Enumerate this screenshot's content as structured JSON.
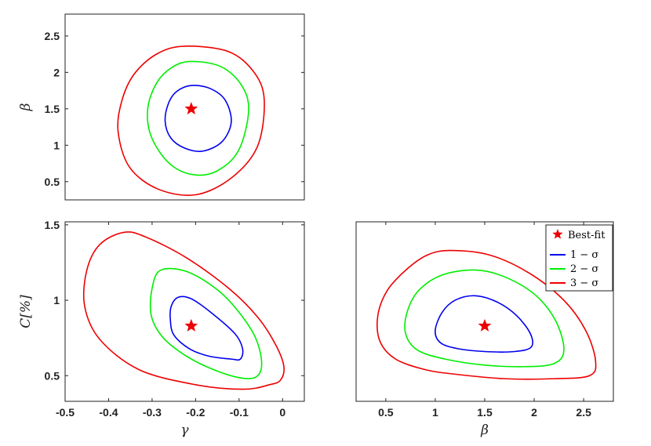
{
  "colors": {
    "one_sigma": "#0000ee",
    "two_sigma": "#00ee00",
    "three_sigma": "#ee0000",
    "best_fit": "#ee0000"
  },
  "legend": {
    "placement": "top-right of bottom-right panel",
    "best_fit": "Best-fit",
    "one_sigma": "1 − σ",
    "two_sigma": "2 − σ",
    "three_sigma": "3 − σ"
  },
  "chart_data": [
    {
      "id": "panel-gamma-beta",
      "type": "scatter",
      "xlim": [
        -0.5,
        0.05
      ],
      "ylim": [
        0.25,
        2.8
      ],
      "xlabel": "",
      "ylabel": "β",
      "xticks": [],
      "xtick_labels": [],
      "yticks": [
        0.5,
        1,
        1.5,
        2,
        2.5
      ],
      "ytick_labels": [
        "0.5",
        "1",
        "1.5",
        "2",
        "2.5"
      ],
      "best_fit": {
        "x": -0.21,
        "y": 1.5
      },
      "contours": [
        {
          "name": "1 − σ",
          "color": "#0000ee",
          "points": [
            [
              -0.21,
              1.82
            ],
            [
              -0.167,
              1.78
            ],
            [
              -0.132,
              1.62
            ],
            [
              -0.118,
              1.32
            ],
            [
              -0.139,
              1.05
            ],
            [
              -0.183,
              0.92
            ],
            [
              -0.225,
              0.96
            ],
            [
              -0.257,
              1.1
            ],
            [
              -0.27,
              1.33
            ],
            [
              -0.262,
              1.58
            ],
            [
              -0.243,
              1.74
            ]
          ]
        },
        {
          "name": "2 − σ",
          "color": "#00ee00",
          "points": [
            [
              -0.21,
              2.15
            ],
            [
              -0.142,
              2.08
            ],
            [
              -0.095,
              1.83
            ],
            [
              -0.078,
              1.48
            ],
            [
              -0.101,
              0.93
            ],
            [
              -0.153,
              0.64
            ],
            [
              -0.21,
              0.6
            ],
            [
              -0.262,
              0.76
            ],
            [
              -0.302,
              1.12
            ],
            [
              -0.31,
              1.5
            ],
            [
              -0.29,
              1.85
            ],
            [
              -0.254,
              2.07
            ]
          ]
        },
        {
          "name": "3 − σ",
          "color": "#ee0000",
          "points": [
            [
              -0.225,
              2.36
            ],
            [
              -0.122,
              2.28
            ],
            [
              -0.063,
              1.98
            ],
            [
              -0.042,
              1.6
            ],
            [
              -0.058,
              0.98
            ],
            [
              -0.118,
              0.55
            ],
            [
              -0.2,
              0.32
            ],
            [
              -0.287,
              0.4
            ],
            [
              -0.352,
              0.7
            ],
            [
              -0.378,
              1.18
            ],
            [
              -0.37,
              1.6
            ],
            [
              -0.342,
              1.97
            ],
            [
              -0.29,
              2.25
            ]
          ]
        }
      ]
    },
    {
      "id": "panel-gamma-C",
      "type": "scatter",
      "xlim": [
        -0.5,
        0.05
      ],
      "ylim": [
        0.33,
        1.52
      ],
      "xlabel": "γ",
      "ylabel": "C[%]",
      "xticks": [
        -0.5,
        -0.4,
        -0.3,
        -0.2,
        -0.1,
        0
      ],
      "xtick_labels": [
        "-0.5",
        "-0.4",
        "-0.3",
        "-0.2",
        "-0.1",
        "0"
      ],
      "yticks": [
        0.5,
        1,
        1.5
      ],
      "ytick_labels": [
        "0.5",
        "1",
        "1.5"
      ],
      "best_fit": {
        "x": -0.21,
        "y": 0.83
      },
      "contours": [
        {
          "name": "1 − σ",
          "color": "#0000ee",
          "points": [
            [
              -0.24,
              1.02
            ],
            [
              -0.21,
              1.01
            ],
            [
              -0.165,
              0.92
            ],
            [
              -0.11,
              0.78
            ],
            [
              -0.092,
              0.68
            ],
            [
              -0.097,
              0.61
            ],
            [
              -0.118,
              0.61
            ],
            [
              -0.17,
              0.63
            ],
            [
              -0.215,
              0.68
            ],
            [
              -0.25,
              0.77
            ],
            [
              -0.258,
              0.87
            ],
            [
              -0.256,
              0.96
            ]
          ]
        },
        {
          "name": "2 − σ",
          "color": "#00ee00",
          "points": [
            [
              -0.28,
              1.2
            ],
            [
              -0.22,
              1.19
            ],
            [
              -0.15,
              1.07
            ],
            [
              -0.1,
              0.92
            ],
            [
              -0.062,
              0.75
            ],
            [
              -0.048,
              0.58
            ],
            [
              -0.062,
              0.49
            ],
            [
              -0.105,
              0.49
            ],
            [
              -0.175,
              0.56
            ],
            [
              -0.232,
              0.65
            ],
            [
              -0.277,
              0.76
            ],
            [
              -0.302,
              0.9
            ],
            [
              -0.3,
              1.08
            ]
          ]
        },
        {
          "name": "3 − σ",
          "color": "#ee0000",
          "points": [
            [
              -0.365,
              1.45
            ],
            [
              -0.315,
              1.42
            ],
            [
              -0.22,
              1.28
            ],
            [
              -0.12,
              1.07
            ],
            [
              -0.055,
              0.88
            ],
            [
              -0.015,
              0.7
            ],
            [
              0.003,
              0.56
            ],
            [
              -0.005,
              0.47
            ],
            [
              -0.03,
              0.44
            ],
            [
              -0.09,
              0.41
            ],
            [
              -0.2,
              0.44
            ],
            [
              -0.33,
              0.54
            ],
            [
              -0.42,
              0.74
            ],
            [
              -0.455,
              0.96
            ],
            [
              -0.45,
              1.2
            ],
            [
              -0.42,
              1.37
            ]
          ]
        }
      ]
    },
    {
      "id": "panel-beta-C",
      "type": "scatter",
      "xlim": [
        0.2,
        2.8
      ],
      "ylim": [
        0.33,
        1.52
      ],
      "xlabel": "β",
      "ylabel": "",
      "xticks": [
        0.5,
        1,
        1.5,
        2,
        2.5
      ],
      "xtick_labels": [
        "0.5",
        "1",
        "1.5",
        "2",
        "2.5"
      ],
      "yticks": [],
      "ytick_labels": [],
      "best_fit": {
        "x": 1.5,
        "y": 0.83
      },
      "legend": true,
      "contours": [
        {
          "name": "1 − σ",
          "color": "#0000ee",
          "points": [
            [
              1.4,
              1.03
            ],
            [
              1.62,
              0.99
            ],
            [
              1.82,
              0.9
            ],
            [
              1.96,
              0.78
            ],
            [
              1.97,
              0.69
            ],
            [
              1.8,
              0.66
            ],
            [
              1.5,
              0.66
            ],
            [
              1.22,
              0.68
            ],
            [
              1.05,
              0.72
            ],
            [
              1.0,
              0.8
            ],
            [
              1.07,
              0.92
            ],
            [
              1.2,
              1.0
            ]
          ]
        },
        {
          "name": "2 − σ",
          "color": "#00ee00",
          "points": [
            [
              1.42,
              1.2
            ],
            [
              1.72,
              1.15
            ],
            [
              2.02,
              1.03
            ],
            [
              2.22,
              0.86
            ],
            [
              2.3,
              0.67
            ],
            [
              2.2,
              0.58
            ],
            [
              1.9,
              0.56
            ],
            [
              1.5,
              0.57
            ],
            [
              1.1,
              0.61
            ],
            [
              0.82,
              0.67
            ],
            [
              0.7,
              0.78
            ],
            [
              0.72,
              0.93
            ],
            [
              0.84,
              1.07
            ],
            [
              1.08,
              1.17
            ]
          ]
        },
        {
          "name": "3 − σ",
          "color": "#ee0000",
          "points": [
            [
              1.15,
              1.33
            ],
            [
              1.55,
              1.3
            ],
            [
              1.95,
              1.18
            ],
            [
              2.3,
              1.0
            ],
            [
              2.52,
              0.8
            ],
            [
              2.62,
              0.6
            ],
            [
              2.56,
              0.5
            ],
            [
              2.2,
              0.48
            ],
            [
              1.7,
              0.48
            ],
            [
              1.2,
              0.51
            ],
            [
              0.9,
              0.54
            ],
            [
              0.6,
              0.61
            ],
            [
              0.44,
              0.73
            ],
            [
              0.42,
              0.9
            ],
            [
              0.52,
              1.07
            ],
            [
              0.72,
              1.21
            ],
            [
              0.92,
              1.3
            ]
          ]
        }
      ]
    }
  ]
}
